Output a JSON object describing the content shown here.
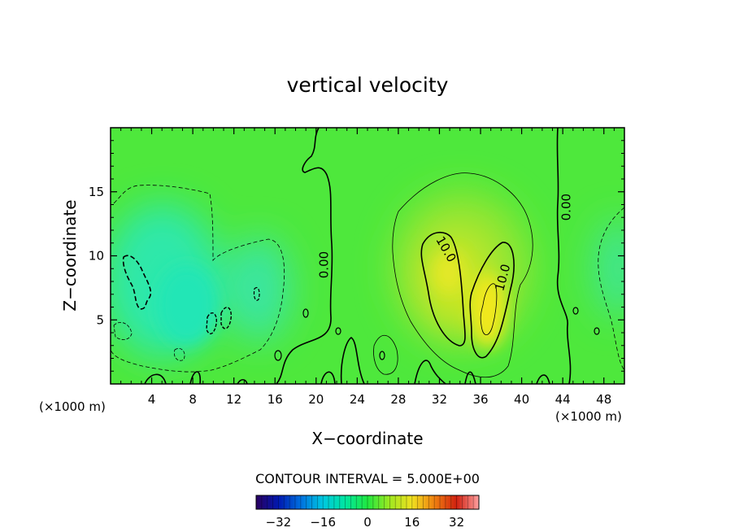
{
  "chart_data": {
    "type": "heatmap",
    "title": "vertical velocity",
    "xlabel": "X−coordinate",
    "ylabel": "Z−coordinate",
    "x_unit_left": "(×1000 m)",
    "x_unit_right": "(×1000 m)",
    "xlim": [
      0,
      50
    ],
    "ylim": [
      0,
      20
    ],
    "xticks": [
      4,
      8,
      12,
      16,
      20,
      24,
      28,
      32,
      36,
      40,
      44,
      48
    ],
    "yticks": [
      5,
      10,
      15
    ],
    "contour_interval_text": "CONTOUR INTERVAL = 5.000E+00",
    "colorbar": {
      "range": [
        -40,
        40
      ],
      "tick_values": [
        -32,
        -16,
        0,
        16,
        32
      ],
      "tick_labels": [
        "−32",
        "−16",
        "0",
        "16",
        "32"
      ],
      "colors": [
        "#2a0060",
        "#0018b0",
        "#0070e0",
        "#00c8e0",
        "#00e6a0",
        "#20e840",
        "#a0e820",
        "#f0e020",
        "#f08010",
        "#d02010",
        "#ffa0a0"
      ]
    },
    "contour_labels": [
      {
        "text": "0.00",
        "x": 20.8,
        "y": 9.3,
        "angle": -90
      },
      {
        "text": "0.00",
        "x": 44.4,
        "y": 13.8,
        "angle": -90
      },
      {
        "text": "10.0",
        "x": 32.6,
        "y": 10.5,
        "angle": 60
      },
      {
        "text": "10.0",
        "x": 38.2,
        "y": 8.3,
        "angle": -75
      }
    ],
    "peak_updraft": {
      "x": 36.8,
      "y": 6.2
    },
    "downdraft_core": {
      "x": 3.0,
      "y": 8.2
    }
  }
}
